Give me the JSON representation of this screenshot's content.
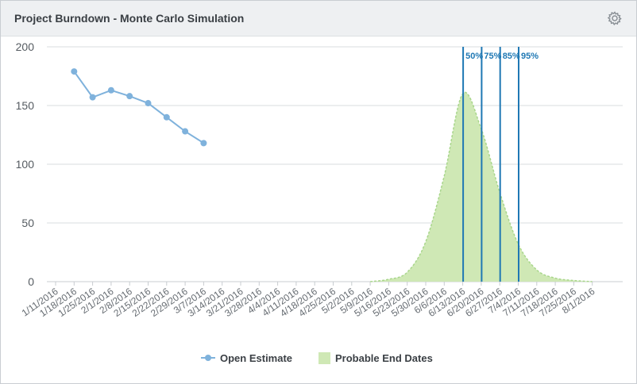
{
  "header": {
    "title": "Project Burndown - Monte Carlo Simulation",
    "settings_icon": "gear-icon"
  },
  "colors": {
    "line": "#7fb2dc",
    "area_fill": "#cfe8b5",
    "area_stroke": "#a9d68c",
    "percentile_line": "#1f78b4",
    "grid": "#d9dcdf"
  },
  "chart_data": {
    "type": "line",
    "x_categories": [
      "1/11/2016",
      "1/18/2016",
      "1/25/2016",
      "2/1/2016",
      "2/8/2016",
      "2/15/2016",
      "2/22/2016",
      "2/29/2016",
      "3/7/2016",
      "3/14/2016",
      "3/21/2016",
      "3/28/2016",
      "4/4/2016",
      "4/11/2016",
      "4/18/2016",
      "4/25/2016",
      "5/2/2016",
      "5/9/2016",
      "5/16/2016",
      "5/23/2016",
      "5/30/2016",
      "6/6/2016",
      "6/13/2016",
      "6/20/2016",
      "6/27/2016",
      "7/4/2016",
      "7/11/2016",
      "7/18/2016",
      "7/25/2016",
      "8/1/2016"
    ],
    "ylim": [
      0,
      200
    ],
    "yticks": [
      0,
      50,
      100,
      150,
      200
    ],
    "grid": true,
    "legend_position": "bottom-center",
    "series": [
      {
        "name": "Open Estimate",
        "type": "line",
        "points": [
          {
            "x": "1/18/2016",
            "y": 179
          },
          {
            "x": "1/25/2016",
            "y": 157
          },
          {
            "x": "2/1/2016",
            "y": 163
          },
          {
            "x": "2/8/2016",
            "y": 158
          },
          {
            "x": "2/15/2016",
            "y": 152
          },
          {
            "x": "2/22/2016",
            "y": 140
          },
          {
            "x": "2/29/2016",
            "y": 128
          },
          {
            "x": "3/7/2016",
            "y": 118
          }
        ]
      },
      {
        "name": "Probable End Dates",
        "type": "area",
        "points": [
          {
            "x": "5/9/2016",
            "y": 0
          },
          {
            "x": "5/16/2016",
            "y": 2
          },
          {
            "x": "5/23/2016",
            "y": 8
          },
          {
            "x": "5/30/2016",
            "y": 34
          },
          {
            "x": "6/6/2016",
            "y": 90
          },
          {
            "x": "6/13/2016",
            "y": 160
          },
          {
            "x": "6/20/2016",
            "y": 130
          },
          {
            "x": "6/27/2016",
            "y": 76
          },
          {
            "x": "7/4/2016",
            "y": 32
          },
          {
            "x": "7/11/2016",
            "y": 10
          },
          {
            "x": "7/18/2016",
            "y": 3
          },
          {
            "x": "7/25/2016",
            "y": 1
          },
          {
            "x": "8/1/2016",
            "y": 0
          }
        ]
      }
    ],
    "percentiles": [
      {
        "label": "50%",
        "x": "6/13/2016"
      },
      {
        "label": "75%",
        "x": "6/20/2016"
      },
      {
        "label": "85%",
        "x": "6/27/2016"
      },
      {
        "label": "95%",
        "x": "7/4/2016"
      }
    ]
  },
  "legend": {
    "items": [
      {
        "label": "Open Estimate"
      },
      {
        "label": "Probable End Dates"
      }
    ]
  }
}
